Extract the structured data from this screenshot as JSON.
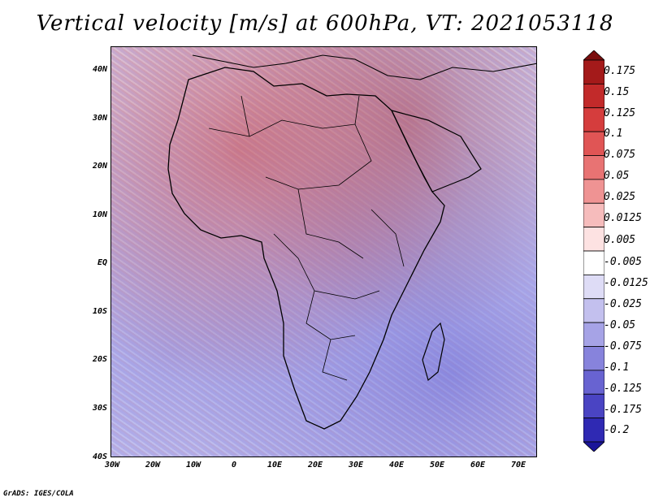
{
  "title": "Vertical velocity [m/s] at 600hPa, VT: 2021053118",
  "footer": "GrADS: IGES/COLA",
  "lat_labels": [
    "40N",
    "30N",
    "20N",
    "10N",
    "EQ",
    "10S",
    "20S",
    "30S",
    "40S"
  ],
  "lon_labels": [
    "30W",
    "20W",
    "10W",
    "0",
    "10E",
    "20E",
    "30E",
    "40E",
    "50E",
    "60E",
    "70E"
  ],
  "colorbar": {
    "labels": [
      "0.175",
      "0.15",
      "0.125",
      "0.1",
      "0.075",
      "0.05",
      "0.025",
      "0.0125",
      "0.005",
      "-0.005",
      "-0.0125",
      "-0.025",
      "-0.05",
      "-0.075",
      "-0.1",
      "-0.125",
      "-0.175",
      "-0.2"
    ],
    "colors": [
      "#7a0e0e",
      "#a41a1a",
      "#c22a2a",
      "#d53d3d",
      "#e05555",
      "#e87373",
      "#ef9393",
      "#f6bcbc",
      "#fde2e2",
      "#ffffff",
      "#dedcf6",
      "#c3c0ee",
      "#a6a3e6",
      "#8783dc",
      "#6863d1",
      "#4a44c3",
      "#2f29b3",
      "#1a1599"
    ]
  }
}
